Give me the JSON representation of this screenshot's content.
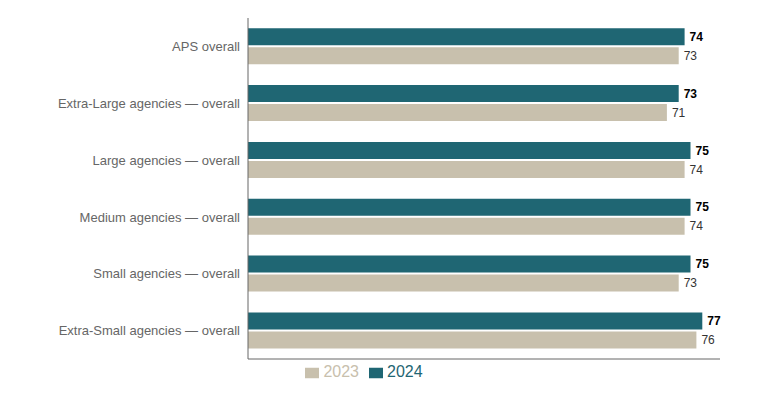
{
  "chart_data": {
    "type": "bar",
    "orientation": "horizontal",
    "categories": [
      "APS overall",
      "Extra-Large agencies — overall",
      "Large agencies — overall",
      "Medium agencies — overall",
      "Small agencies — overall",
      "Extra-Small agencies — overall"
    ],
    "series": [
      {
        "name": "2024",
        "color": "#1f6673",
        "values": [
          74,
          73,
          75,
          75,
          75,
          77
        ]
      },
      {
        "name": "2023",
        "color": "#c8c0ad",
        "values": [
          73,
          71,
          74,
          74,
          73,
          76
        ]
      }
    ],
    "xlim": [
      0,
      80
    ],
    "data_labels": true,
    "tick_labels": "y",
    "legend": "bottom",
    "grid": false
  }
}
